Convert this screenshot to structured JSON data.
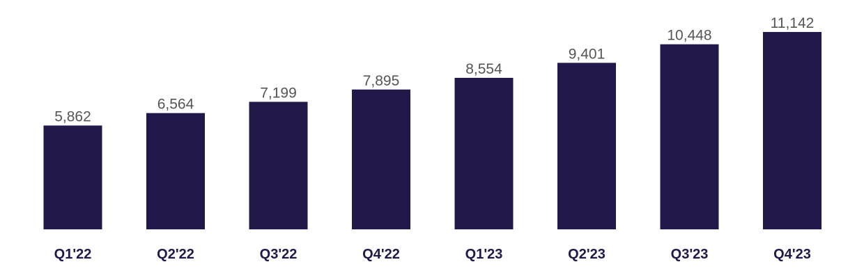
{
  "chart_data": {
    "type": "bar",
    "categories": [
      "Q1'22",
      "Q2'22",
      "Q3'22",
      "Q4'22",
      "Q1'23",
      "Q2'23",
      "Q3'23",
      "Q4'23"
    ],
    "values": [
      5862,
      6564,
      7199,
      7895,
      8554,
      9401,
      10448,
      11142
    ],
    "value_labels": [
      "5,862",
      "6,564",
      "7,199",
      "7,895",
      "8,554",
      "9,401",
      "10,448",
      "11,142"
    ],
    "title": "",
    "xlabel": "",
    "ylabel": "",
    "grid": false,
    "legend": "none",
    "bar_color": "#22184a",
    "label_color": "#555555",
    "category_color": "#22184a"
  }
}
